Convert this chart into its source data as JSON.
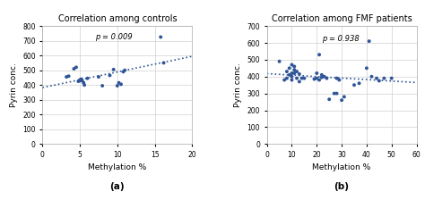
{
  "title_a": "Correlation among controls",
  "title_b": "Correlation among FMF patients",
  "xlabel": "Methylation %",
  "ylabel": "Pyrin conc.",
  "label_a": "(a)",
  "label_b": "(b)",
  "p_value_a": "p = 0.009",
  "p_value_b": "p = 0.938",
  "dot_color": "#2F5597",
  "trendline_color": "#2F5597",
  "scatter_a_x": [
    3.2,
    3.5,
    4.2,
    4.5,
    4.8,
    5.0,
    5.1,
    5.2,
    5.3,
    5.5,
    5.6,
    6.0,
    7.5,
    8.0,
    9.0,
    9.5,
    10.0,
    10.2,
    10.5,
    10.8,
    11.0,
    15.8,
    16.2
  ],
  "scatter_a_y": [
    455,
    460,
    510,
    520,
    425,
    435,
    430,
    440,
    430,
    415,
    400,
    445,
    455,
    395,
    465,
    505,
    395,
    415,
    405,
    490,
    500,
    725,
    550
  ],
  "scatter_b_x": [
    5,
    7,
    8,
    8,
    9,
    9,
    10,
    10,
    10,
    10,
    11,
    11,
    11,
    12,
    12,
    13,
    13,
    14,
    15,
    19,
    20,
    20,
    21,
    21,
    22,
    22,
    23,
    24,
    25,
    27,
    28,
    28,
    29,
    30,
    31,
    35,
    37,
    40,
    41,
    42,
    44,
    45,
    47,
    50
  ],
  "scatter_b_y": [
    490,
    380,
    390,
    430,
    410,
    450,
    420,
    470,
    380,
    400,
    420,
    440,
    460,
    390,
    430,
    370,
    415,
    390,
    390,
    385,
    390,
    420,
    530,
    380,
    395,
    410,
    400,
    390,
    265,
    300,
    390,
    300,
    380,
    260,
    280,
    350,
    360,
    450,
    610,
    400,
    390,
    375,
    390,
    390
  ],
  "xlim_a": [
    0,
    20
  ],
  "ylim_a": [
    0,
    800
  ],
  "xlim_b": [
    0,
    60
  ],
  "ylim_b": [
    0,
    700
  ],
  "xticks_a": [
    0,
    5,
    10,
    15,
    20
  ],
  "yticks_a": [
    0,
    100,
    200,
    300,
    400,
    500,
    600,
    700,
    800
  ],
  "xticks_b": [
    0,
    10,
    20,
    30,
    40,
    50,
    60
  ],
  "yticks_b": [
    0,
    100,
    200,
    300,
    400,
    500,
    600,
    700
  ],
  "bg_color": "#ffffff",
  "plot_bg_color": "#ffffff",
  "grid_color": "#d0d0d0",
  "spine_color": "#aaaaaa"
}
